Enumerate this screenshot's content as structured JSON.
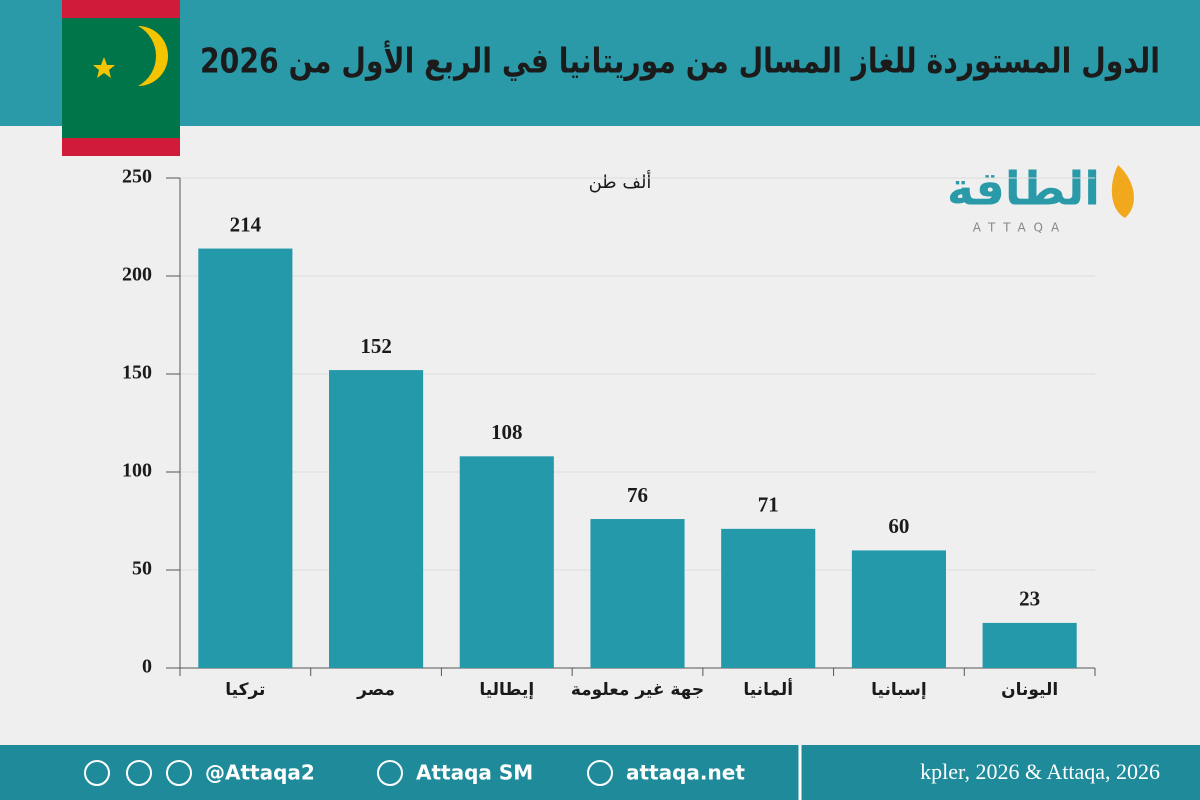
{
  "header": {
    "title": "الدول المستوردة للغاز المسال من موريتانيا في الربع الأول من 2026"
  },
  "logo": {
    "arabic": "الطاقة",
    "latin": "ATTAQA"
  },
  "chart_data": {
    "type": "bar",
    "unit_label": "ألف طن",
    "categories": [
      "تركيا",
      "مصر",
      "إيطاليا",
      "جهة غير معلومة",
      "ألمانيا",
      "إسبانيا",
      "اليونان"
    ],
    "values": [
      214,
      152,
      108,
      76,
      71,
      60,
      23
    ],
    "color": "#2499aa",
    "ylim": [
      0,
      250
    ],
    "yticks": [
      0,
      50,
      100,
      150,
      200,
      250
    ],
    "grid": true
  },
  "footer": {
    "handles": [
      "@Attaqa2",
      "Attaqa SM",
      "attaqa.net"
    ],
    "source": "kpler, 2026 & Attaqa, 2026"
  }
}
